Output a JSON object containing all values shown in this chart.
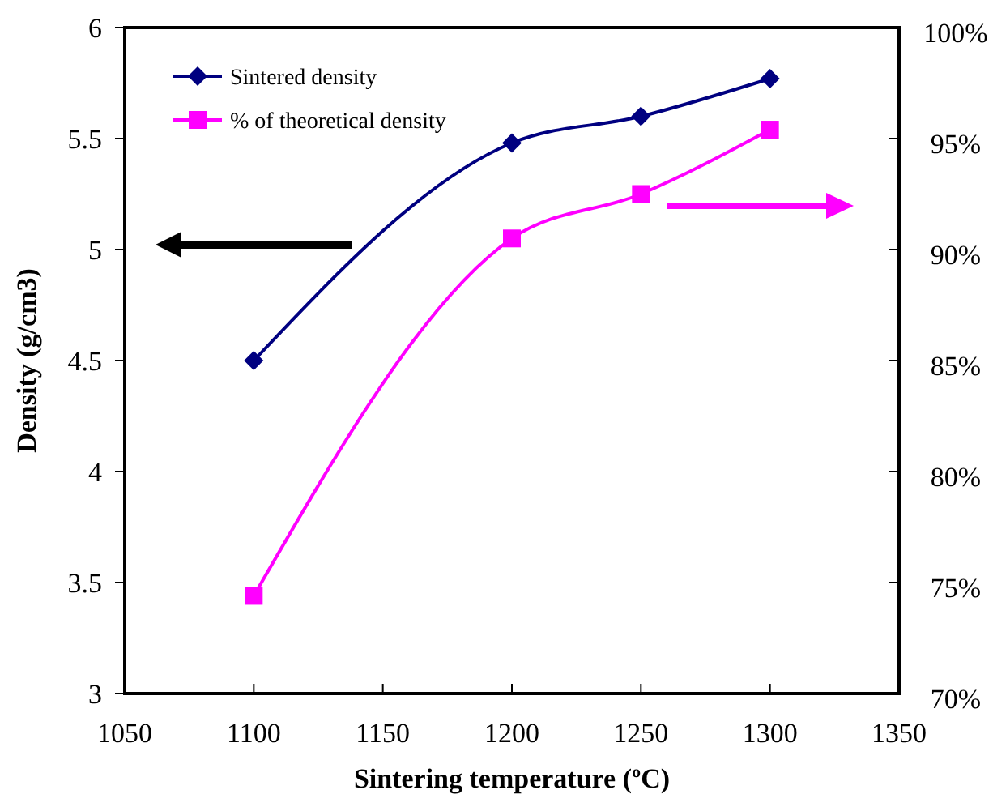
{
  "chart_data": {
    "type": "line",
    "xlabel": "Sintering temperature (ºC)",
    "ylabel": "Density (g/cm3)",
    "x": [
      1100,
      1200,
      1250,
      1300
    ],
    "xlim": [
      1050,
      1350
    ],
    "xticks": [
      1050,
      1100,
      1150,
      1200,
      1250,
      1300,
      1350
    ],
    "ylim": [
      3,
      6
    ],
    "yticks": [
      3,
      3.5,
      4,
      4.5,
      5,
      5.5,
      6
    ],
    "y2lim": [
      70,
      100
    ],
    "y2ticks": [
      {
        "value": 70,
        "label": "70%"
      },
      {
        "value": 75,
        "label": "75%"
      },
      {
        "value": 80,
        "label": "80%"
      },
      {
        "value": 85,
        "label": "85%"
      },
      {
        "value": 90,
        "label": "90%"
      },
      {
        "value": 95,
        "label": "95%"
      },
      {
        "value": 100,
        "label": "100%"
      }
    ],
    "legend": "top left",
    "grid": false,
    "series": [
      {
        "name": "Sintered density",
        "color": "#000080",
        "marker": "diamond",
        "values": [
          4.5,
          5.48,
          5.6,
          5.77
        ]
      },
      {
        "name": "% of theoretical density",
        "color": "#ff00ff",
        "marker": "square",
        "axis": "y2",
        "values": [
          74.4,
          90.5,
          92.5,
          95.4
        ]
      }
    ]
  }
}
